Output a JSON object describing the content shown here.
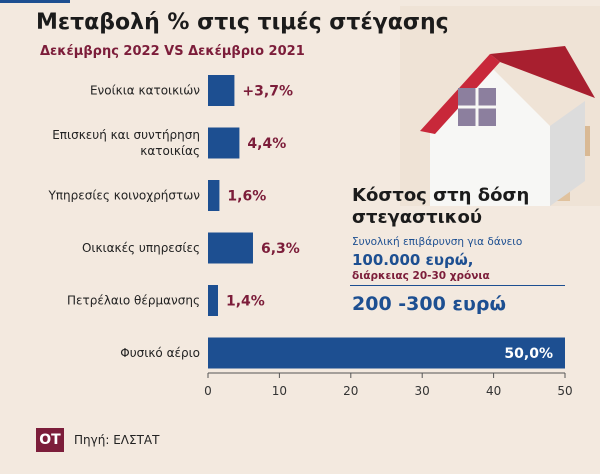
{
  "header": {
    "title": "Μεταβολή % στις τιμές στέγασης",
    "subtitle": "Δεκέμβρης 2022 VS Δεκέμβριο 2021"
  },
  "chart_data": {
    "type": "bar",
    "orientation": "horizontal",
    "categories": [
      [
        "Ενοίκια κατοικιών"
      ],
      [
        "Επισκευή και συντήρηση",
        "κατοικίας"
      ],
      [
        "Υπηρεσίες κοινοχρήστων"
      ],
      [
        "Οικιακές υπηρεσίες"
      ],
      [
        "Πετρέλαιο θέρμανσης"
      ],
      [
        "Φυσικό αέριο"
      ]
    ],
    "values": [
      3.7,
      4.4,
      1.6,
      6.3,
      1.4,
      50.0
    ],
    "value_labels": [
      "+3,7%",
      "4,4%",
      "1,6%",
      "6,3%",
      "1,4%",
      "50,0%"
    ],
    "xlim": [
      0,
      50
    ],
    "xticks": [
      "0",
      "10",
      "20",
      "30",
      "40",
      "50"
    ],
    "grid": false,
    "bar_color": "#1d4f91",
    "label_color": "#7c1d3a"
  },
  "cost_box": {
    "title": "Κόστος στη δόση στεγαστικού",
    "line1": "Συνολική επιβάρυνση για δάνειο",
    "amount": "100.000 ευρώ,",
    "duration": "διάρκειας 20-30 χρόνια",
    "range": "200 -300 ευρώ"
  },
  "footer": {
    "logo": "OT",
    "source": "Πηγή: ΕΛΣΤΑΤ"
  },
  "icons": {
    "illustration": "house-icon"
  }
}
